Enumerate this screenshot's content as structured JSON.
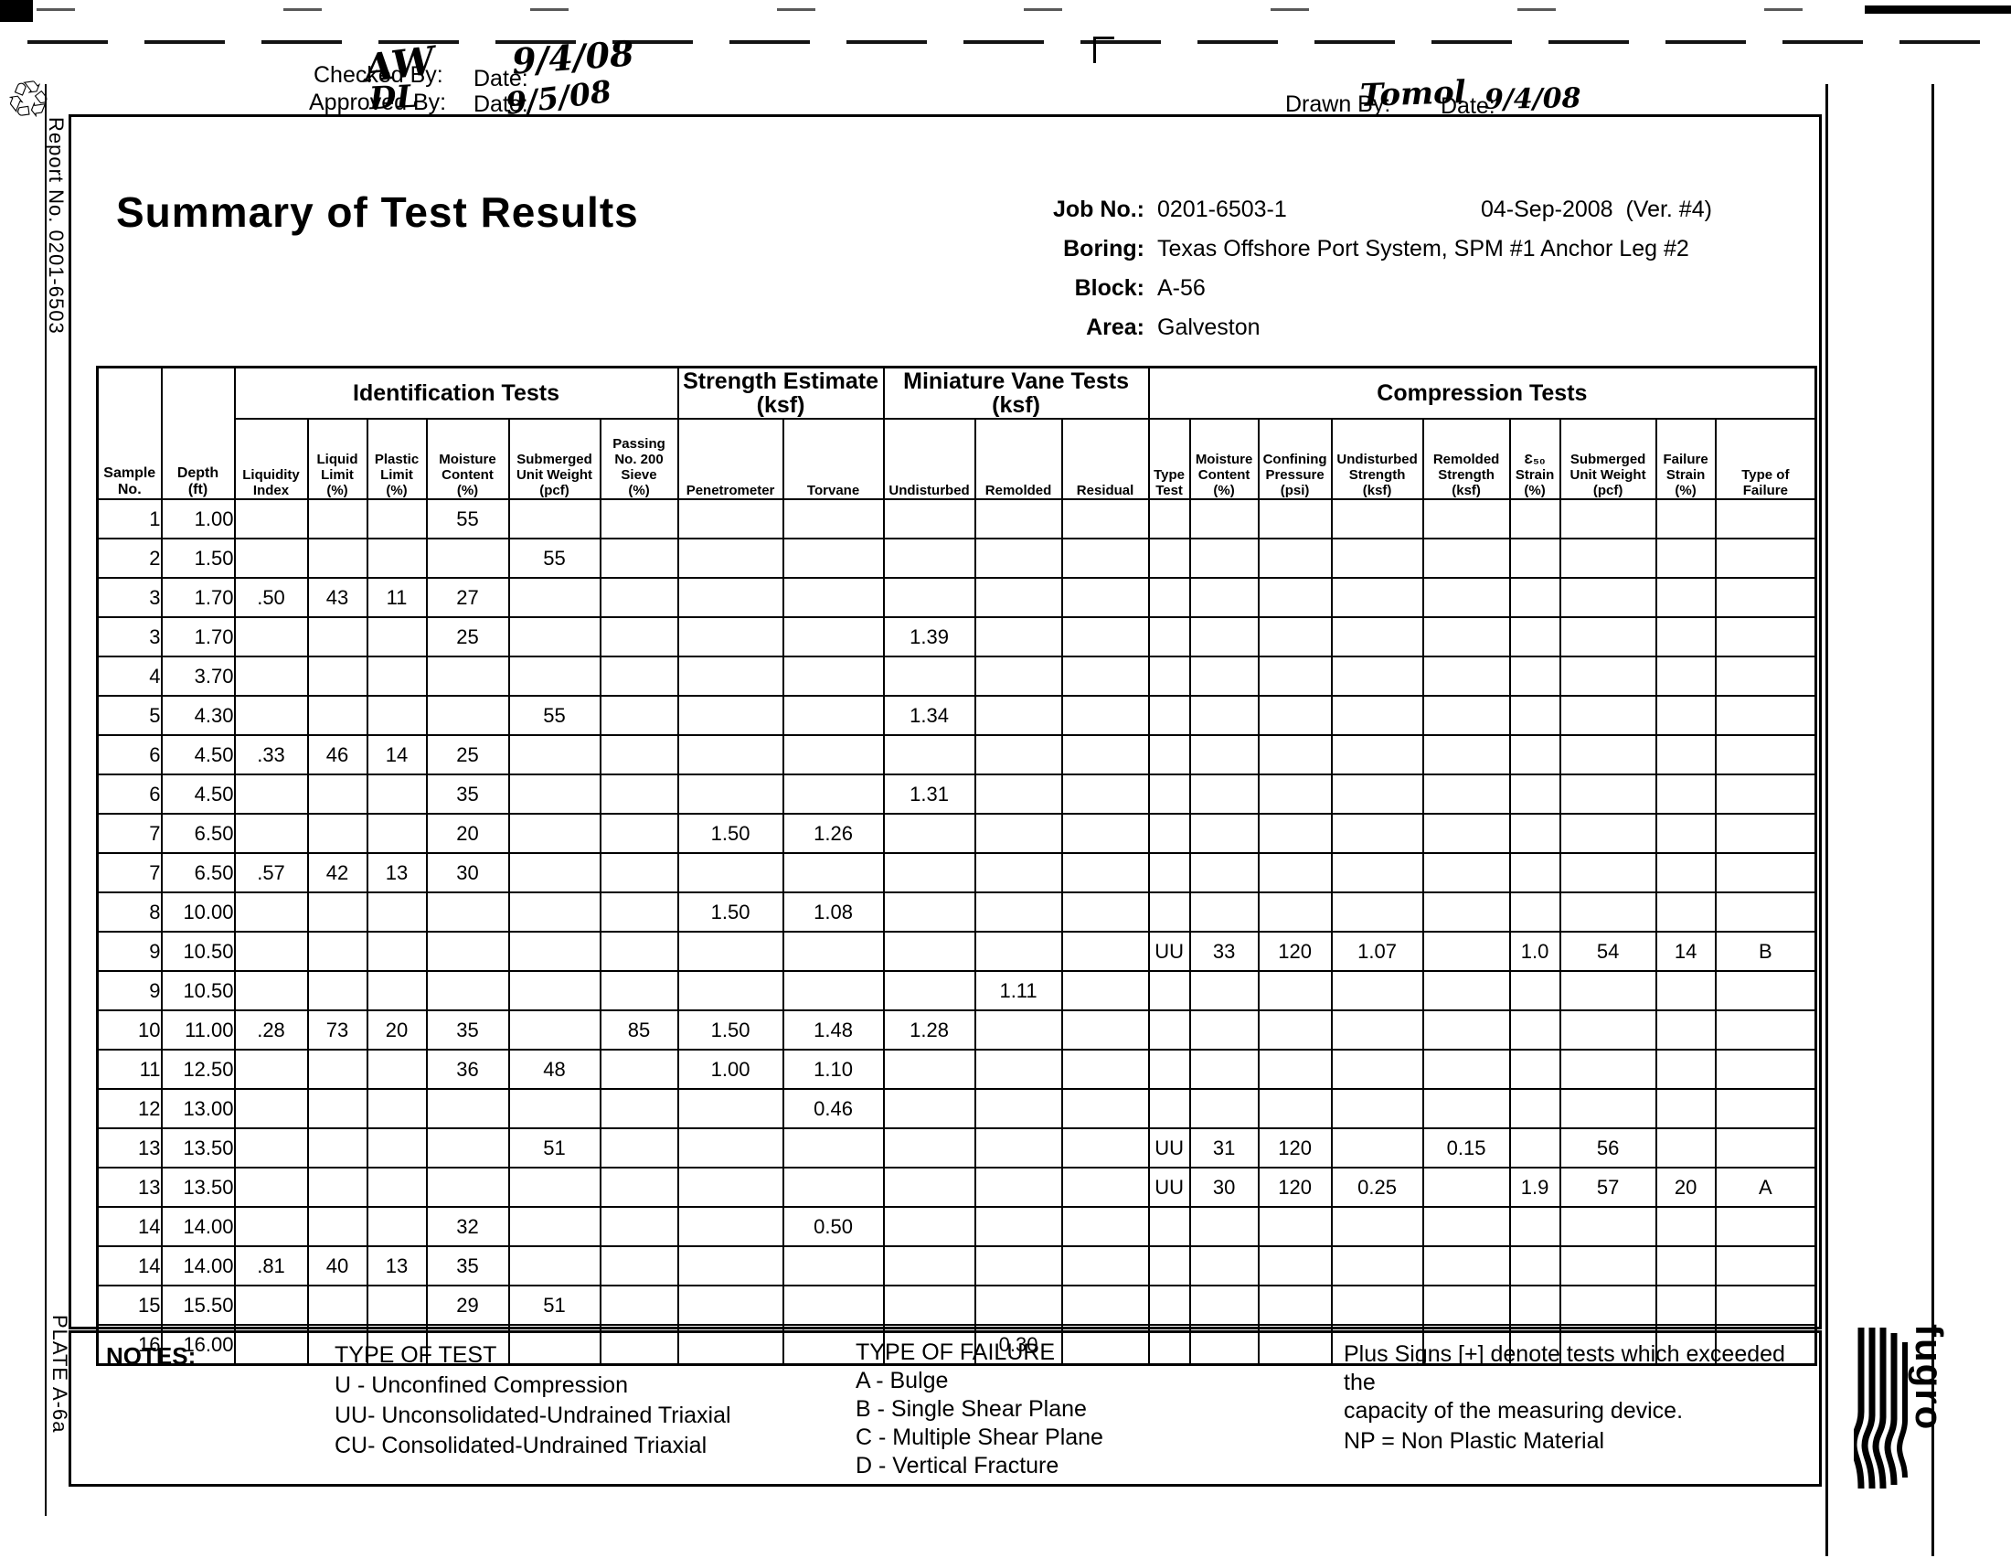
{
  "page": {
    "report_no_vertical": "Report No. 0201-6503",
    "plate_vertical": "PLATE A-6a",
    "fugro_logo_text": "fugro",
    "recycle_icon_glyph": "♲"
  },
  "signoff": {
    "checked_label": "Checked By:",
    "checked_value": "AW",
    "checked_date_label": "Date:",
    "checked_date": "9/4/08",
    "approved_label": "Approved By:",
    "approved_value": "DL",
    "approved_date_label": "Date:",
    "approved_date": "9/5/08",
    "drawn_label": "Drawn By:",
    "drawn_value": "Tomol",
    "drawn_date_label": "Date:",
    "drawn_date": "9/4/08"
  },
  "header": {
    "title": "Summary of Test Results",
    "job_no_label": "Job No.:",
    "job_no": "0201-6503-1",
    "version_date": "04-Sep-2008  (Ver. #4)",
    "boring_label": "Boring:",
    "boring": "Texas Offshore Port System, SPM #1 Anchor Leg #2",
    "block_label": "Block:",
    "block": "A-56",
    "area_label": "Area:",
    "area": "Galveston"
  },
  "table": {
    "groups": {
      "identification": "Identification Tests",
      "strength": "Strength Estimate\n(ksf)",
      "vane": "Miniature Vane Tests\n(ksf)",
      "compression": "Compression Tests"
    },
    "columns": [
      "Sample\nNo.",
      "Depth\n(ft)",
      "Liquidity\nIndex",
      "Liquid\nLimit\n(%)",
      "Plastic\nLimit\n(%)",
      "Moisture\nContent\n(%)",
      "Submerged\nUnit Weight\n(pcf)",
      "Passing\nNo. 200\nSieve\n(%)",
      "Penetrometer",
      "Torvane",
      "Undisturbed",
      "Remolded",
      "Residual",
      "Type\nTest",
      "Moisture\nContent\n(%)",
      "Confining\nPressure\n(psi)",
      "Undisturbed\nStrength\n(ksf)",
      "Remolded\nStrength\n(ksf)",
      "Ɛ₅₀\nStrain\n(%)",
      "Submerged\nUnit Weight\n(pcf)",
      "Failure\nStrain\n(%)",
      "Type of\nFailure"
    ],
    "rows": [
      [
        "1",
        "1.00",
        "",
        "",
        "",
        "55",
        "",
        "",
        "",
        "",
        "",
        "",
        "",
        "",
        "",
        "",
        "",
        "",
        "",
        "",
        "",
        ""
      ],
      [
        "2",
        "1.50",
        "",
        "",
        "",
        "",
        "55",
        "",
        "",
        "",
        "",
        "",
        "",
        "",
        "",
        "",
        "",
        "",
        "",
        "",
        "",
        ""
      ],
      [
        "3",
        "1.70",
        ".50",
        "43",
        "11",
        "27",
        "",
        "",
        "",
        "",
        "",
        "",
        "",
        "",
        "",
        "",
        "",
        "",
        "",
        "",
        "",
        ""
      ],
      [
        "3",
        "1.70",
        "",
        "",
        "",
        "25",
        "",
        "",
        "",
        "",
        "1.39",
        "",
        "",
        "",
        "",
        "",
        "",
        "",
        "",
        "",
        "",
        ""
      ],
      [
        "4",
        "3.70",
        "",
        "",
        "",
        "",
        "",
        "",
        "",
        "",
        "",
        "",
        "",
        "",
        "",
        "",
        "",
        "",
        "",
        "",
        "",
        ""
      ],
      [
        "5",
        "4.30",
        "",
        "",
        "",
        "",
        "55",
        "",
        "",
        "",
        "1.34",
        "",
        "",
        "",
        "",
        "",
        "",
        "",
        "",
        "",
        "",
        ""
      ],
      [
        "6",
        "4.50",
        ".33",
        "46",
        "14",
        "25",
        "",
        "",
        "",
        "",
        "",
        "",
        "",
        "",
        "",
        "",
        "",
        "",
        "",
        "",
        "",
        ""
      ],
      [
        "6",
        "4.50",
        "",
        "",
        "",
        "35",
        "",
        "",
        "",
        "",
        "1.31",
        "",
        "",
        "",
        "",
        "",
        "",
        "",
        "",
        "",
        "",
        ""
      ],
      [
        "7",
        "6.50",
        "",
        "",
        "",
        "20",
        "",
        "",
        "1.50",
        "1.26",
        "",
        "",
        "",
        "",
        "",
        "",
        "",
        "",
        "",
        "",
        "",
        ""
      ],
      [
        "7",
        "6.50",
        ".57",
        "42",
        "13",
        "30",
        "",
        "",
        "",
        "",
        "",
        "",
        "",
        "",
        "",
        "",
        "",
        "",
        "",
        "",
        "",
        ""
      ],
      [
        "8",
        "10.00",
        "",
        "",
        "",
        "",
        "",
        "",
        "1.50",
        "1.08",
        "",
        "",
        "",
        "",
        "",
        "",
        "",
        "",
        "",
        "",
        "",
        ""
      ],
      [
        "9",
        "10.50",
        "",
        "",
        "",
        "",
        "",
        "",
        "",
        "",
        "",
        "",
        "",
        "UU",
        "33",
        "120",
        "1.07",
        "",
        "1.0",
        "54",
        "14",
        "B"
      ],
      [
        "9",
        "10.50",
        "",
        "",
        "",
        "",
        "",
        "",
        "",
        "",
        "",
        "1.11",
        "",
        "",
        "",
        "",
        "",
        "",
        "",
        "",
        "",
        ""
      ],
      [
        "10",
        "11.00",
        ".28",
        "73",
        "20",
        "35",
        "",
        "85",
        "1.50",
        "1.48",
        "1.28",
        "",
        "",
        "",
        "",
        "",
        "",
        "",
        "",
        "",
        "",
        ""
      ],
      [
        "11",
        "12.50",
        "",
        "",
        "",
        "36",
        "48",
        "",
        "1.00",
        "1.10",
        "",
        "",
        "",
        "",
        "",
        "",
        "",
        "",
        "",
        "",
        "",
        ""
      ],
      [
        "12",
        "13.00",
        "",
        "",
        "",
        "",
        "",
        "",
        "",
        "0.46",
        "",
        "",
        "",
        "",
        "",
        "",
        "",
        "",
        "",
        "",
        "",
        ""
      ],
      [
        "13",
        "13.50",
        "",
        "",
        "",
        "",
        "51",
        "",
        "",
        "",
        "",
        "",
        "",
        "UU",
        "31",
        "120",
        "",
        "0.15",
        "",
        "56",
        "",
        ""
      ],
      [
        "13",
        "13.50",
        "",
        "",
        "",
        "",
        "",
        "",
        "",
        "",
        "",
        "",
        "",
        "UU",
        "30",
        "120",
        "0.25",
        "",
        "1.9",
        "57",
        "20",
        "A"
      ],
      [
        "14",
        "14.00",
        "",
        "",
        "",
        "32",
        "",
        "",
        "",
        "0.50",
        "",
        "",
        "",
        "",
        "",
        "",
        "",
        "",
        "",
        "",
        "",
        ""
      ],
      [
        "14",
        "14.00",
        ".81",
        "40",
        "13",
        "35",
        "",
        "",
        "",
        "",
        "",
        "",
        "",
        "",
        "",
        "",
        "",
        "",
        "",
        "",
        "",
        ""
      ],
      [
        "15",
        "15.50",
        "",
        "",
        "",
        "29",
        "51",
        "",
        "",
        "",
        "",
        "",
        "",
        "",
        "",
        "",
        "",
        "",
        "",
        "",
        "",
        ""
      ],
      [
        "16",
        "16.00",
        "",
        "",
        "",
        "",
        "",
        "",
        "",
        "",
        "",
        "0.30",
        "",
        "",
        "",
        "",
        "",
        "",
        "",
        "",
        "",
        ""
      ]
    ]
  },
  "notes": {
    "label": "NOTES:",
    "type_of_test_title": "TYPE OF TEST",
    "type_of_test_items": "U  - Unconfined Compression\nUU- Unconsolidated-Undrained Triaxial\nCU- Consolidated-Undrained Triaxial",
    "type_of_failure_title": "TYPE OF FAILURE",
    "type_of_failure_items": "A - Bulge\nB - Single Shear Plane\nC - Multiple Shear Plane\nD - Vertical Fracture",
    "plus_note": "Plus Signs [+] denote tests which exceeded the\ncapacity of the measuring device.",
    "np_note": "NP = Non Plastic Material"
  }
}
